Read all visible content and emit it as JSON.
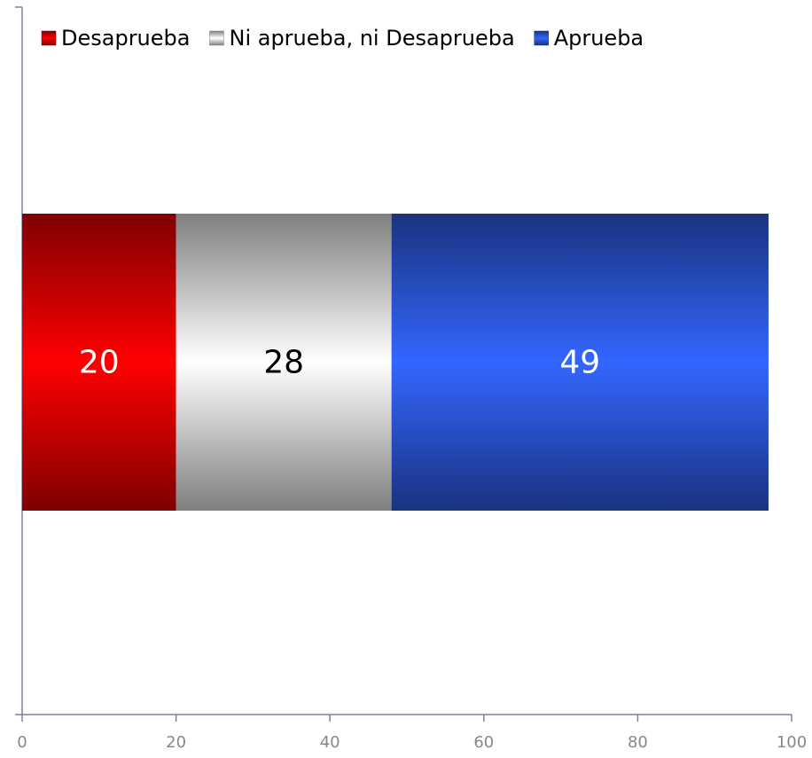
{
  "chart_data": {
    "type": "bar",
    "orientation": "horizontal",
    "stacked": true,
    "categories": [
      null
    ],
    "series": [
      {
        "name": "Desaprueba",
        "color": "#ff0000",
        "values": [
          20
        ]
      },
      {
        "name": "Ni aprueba, ni Desaprueba",
        "color": "#ffffff",
        "values": [
          28
        ]
      },
      {
        "name": "Aprueba",
        "color": "#3366ff",
        "values": [
          49
        ]
      }
    ],
    "xlim": [
      0,
      100
    ],
    "xticks": [
      0,
      20,
      40,
      60,
      80,
      100
    ],
    "legend": "top"
  }
}
